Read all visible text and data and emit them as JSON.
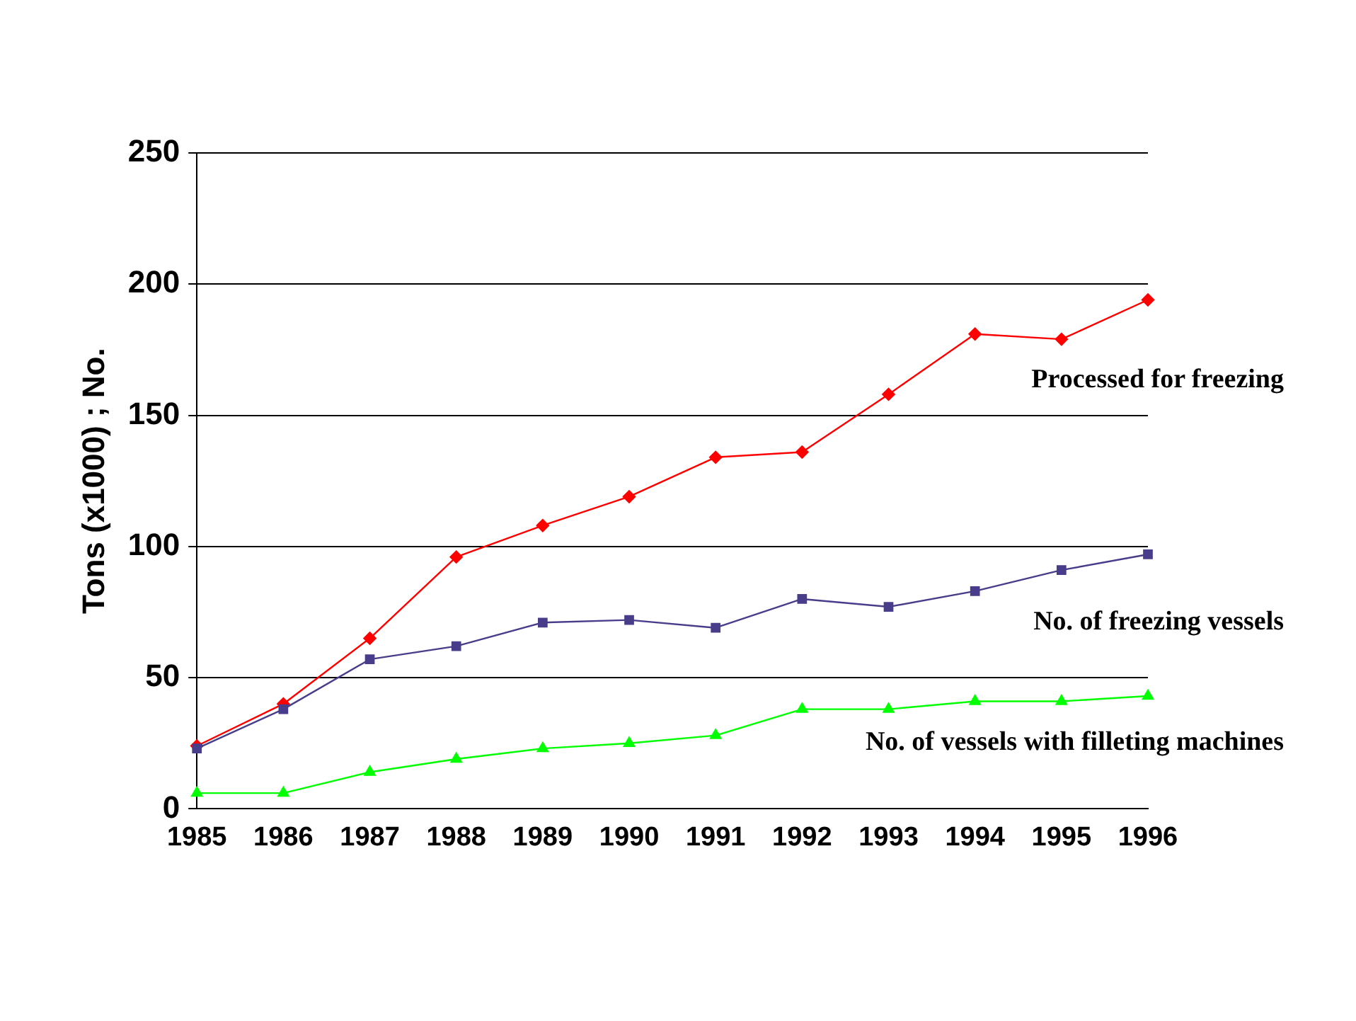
{
  "chart_data": {
    "type": "line",
    "ylabel": "Tons (x1000) ; No.",
    "categories": [
      "1985",
      "1986",
      "1987",
      "1988",
      "1989",
      "1990",
      "1991",
      "1992",
      "1993",
      "1994",
      "1995",
      "1996"
    ],
    "ylim": [
      0,
      250
    ],
    "yticks": [
      0,
      50,
      100,
      150,
      200,
      250
    ],
    "grid": "y",
    "legend": false,
    "line_style": "solid",
    "series": [
      {
        "name": "Processed for freezing",
        "color": "#ff0000",
        "marker": "diamond",
        "values": [
          24,
          40,
          65,
          96,
          108,
          119,
          134,
          136,
          158,
          181,
          179,
          194
        ]
      },
      {
        "name": "No. of freezing vessels",
        "color": "#483d8b",
        "marker": "square",
        "values": [
          23,
          38,
          57,
          62,
          71,
          72,
          69,
          80,
          77,
          83,
          91,
          97
        ]
      },
      {
        "name": "No. of vessels with filleting machines",
        "color": "#00ff00",
        "marker": "triangle",
        "values": [
          6,
          6,
          14,
          19,
          23,
          25,
          28,
          38,
          38,
          41,
          41,
          43
        ]
      }
    ]
  }
}
